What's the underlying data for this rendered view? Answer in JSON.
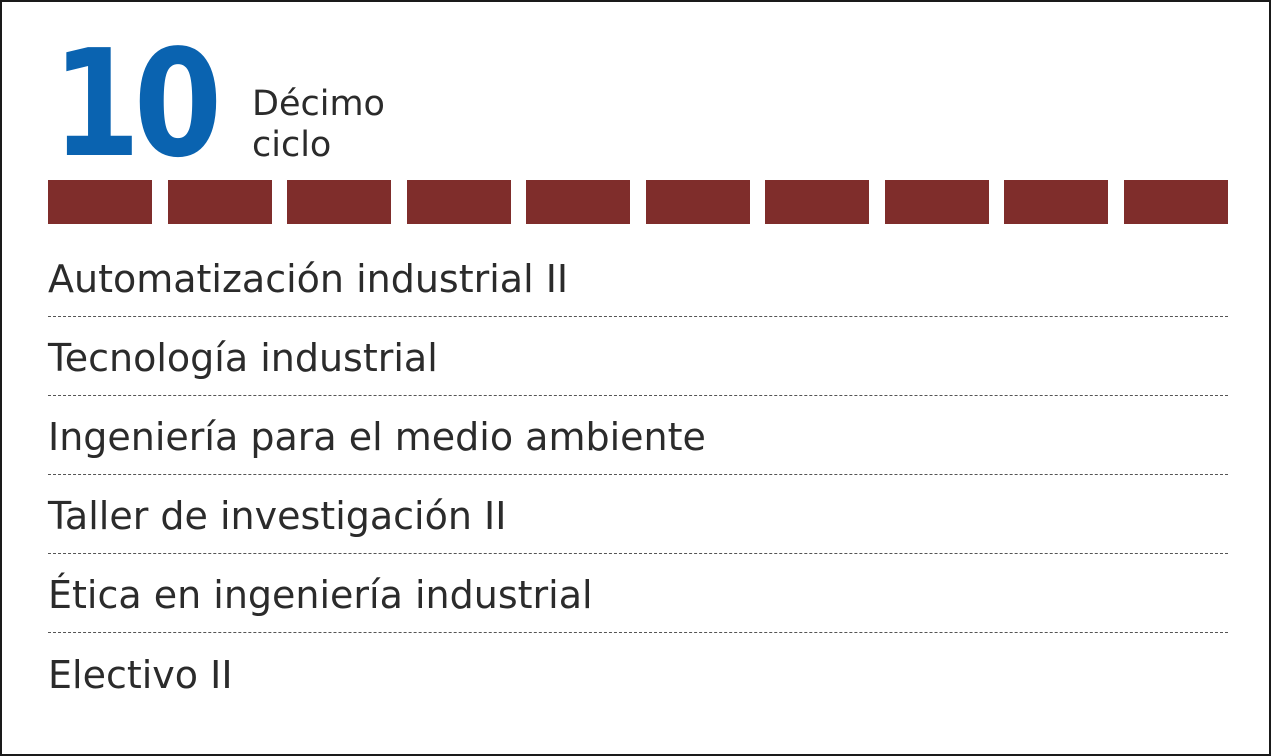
{
  "header": {
    "number": "10",
    "label": "Décimo ciclo"
  },
  "colors": {
    "number": "#0a63b0",
    "bar": "#7f2d2b",
    "text": "#2b2b2b",
    "divider": "#555555"
  },
  "progress": {
    "segments_filled": 10,
    "segments_total": 10
  },
  "courses": [
    "Automatización industrial II",
    "Tecnología industrial",
    "Ingeniería para el medio ambiente",
    "Taller de investigación II",
    "Ética en ingeniería industrial",
    "Electivo II"
  ]
}
